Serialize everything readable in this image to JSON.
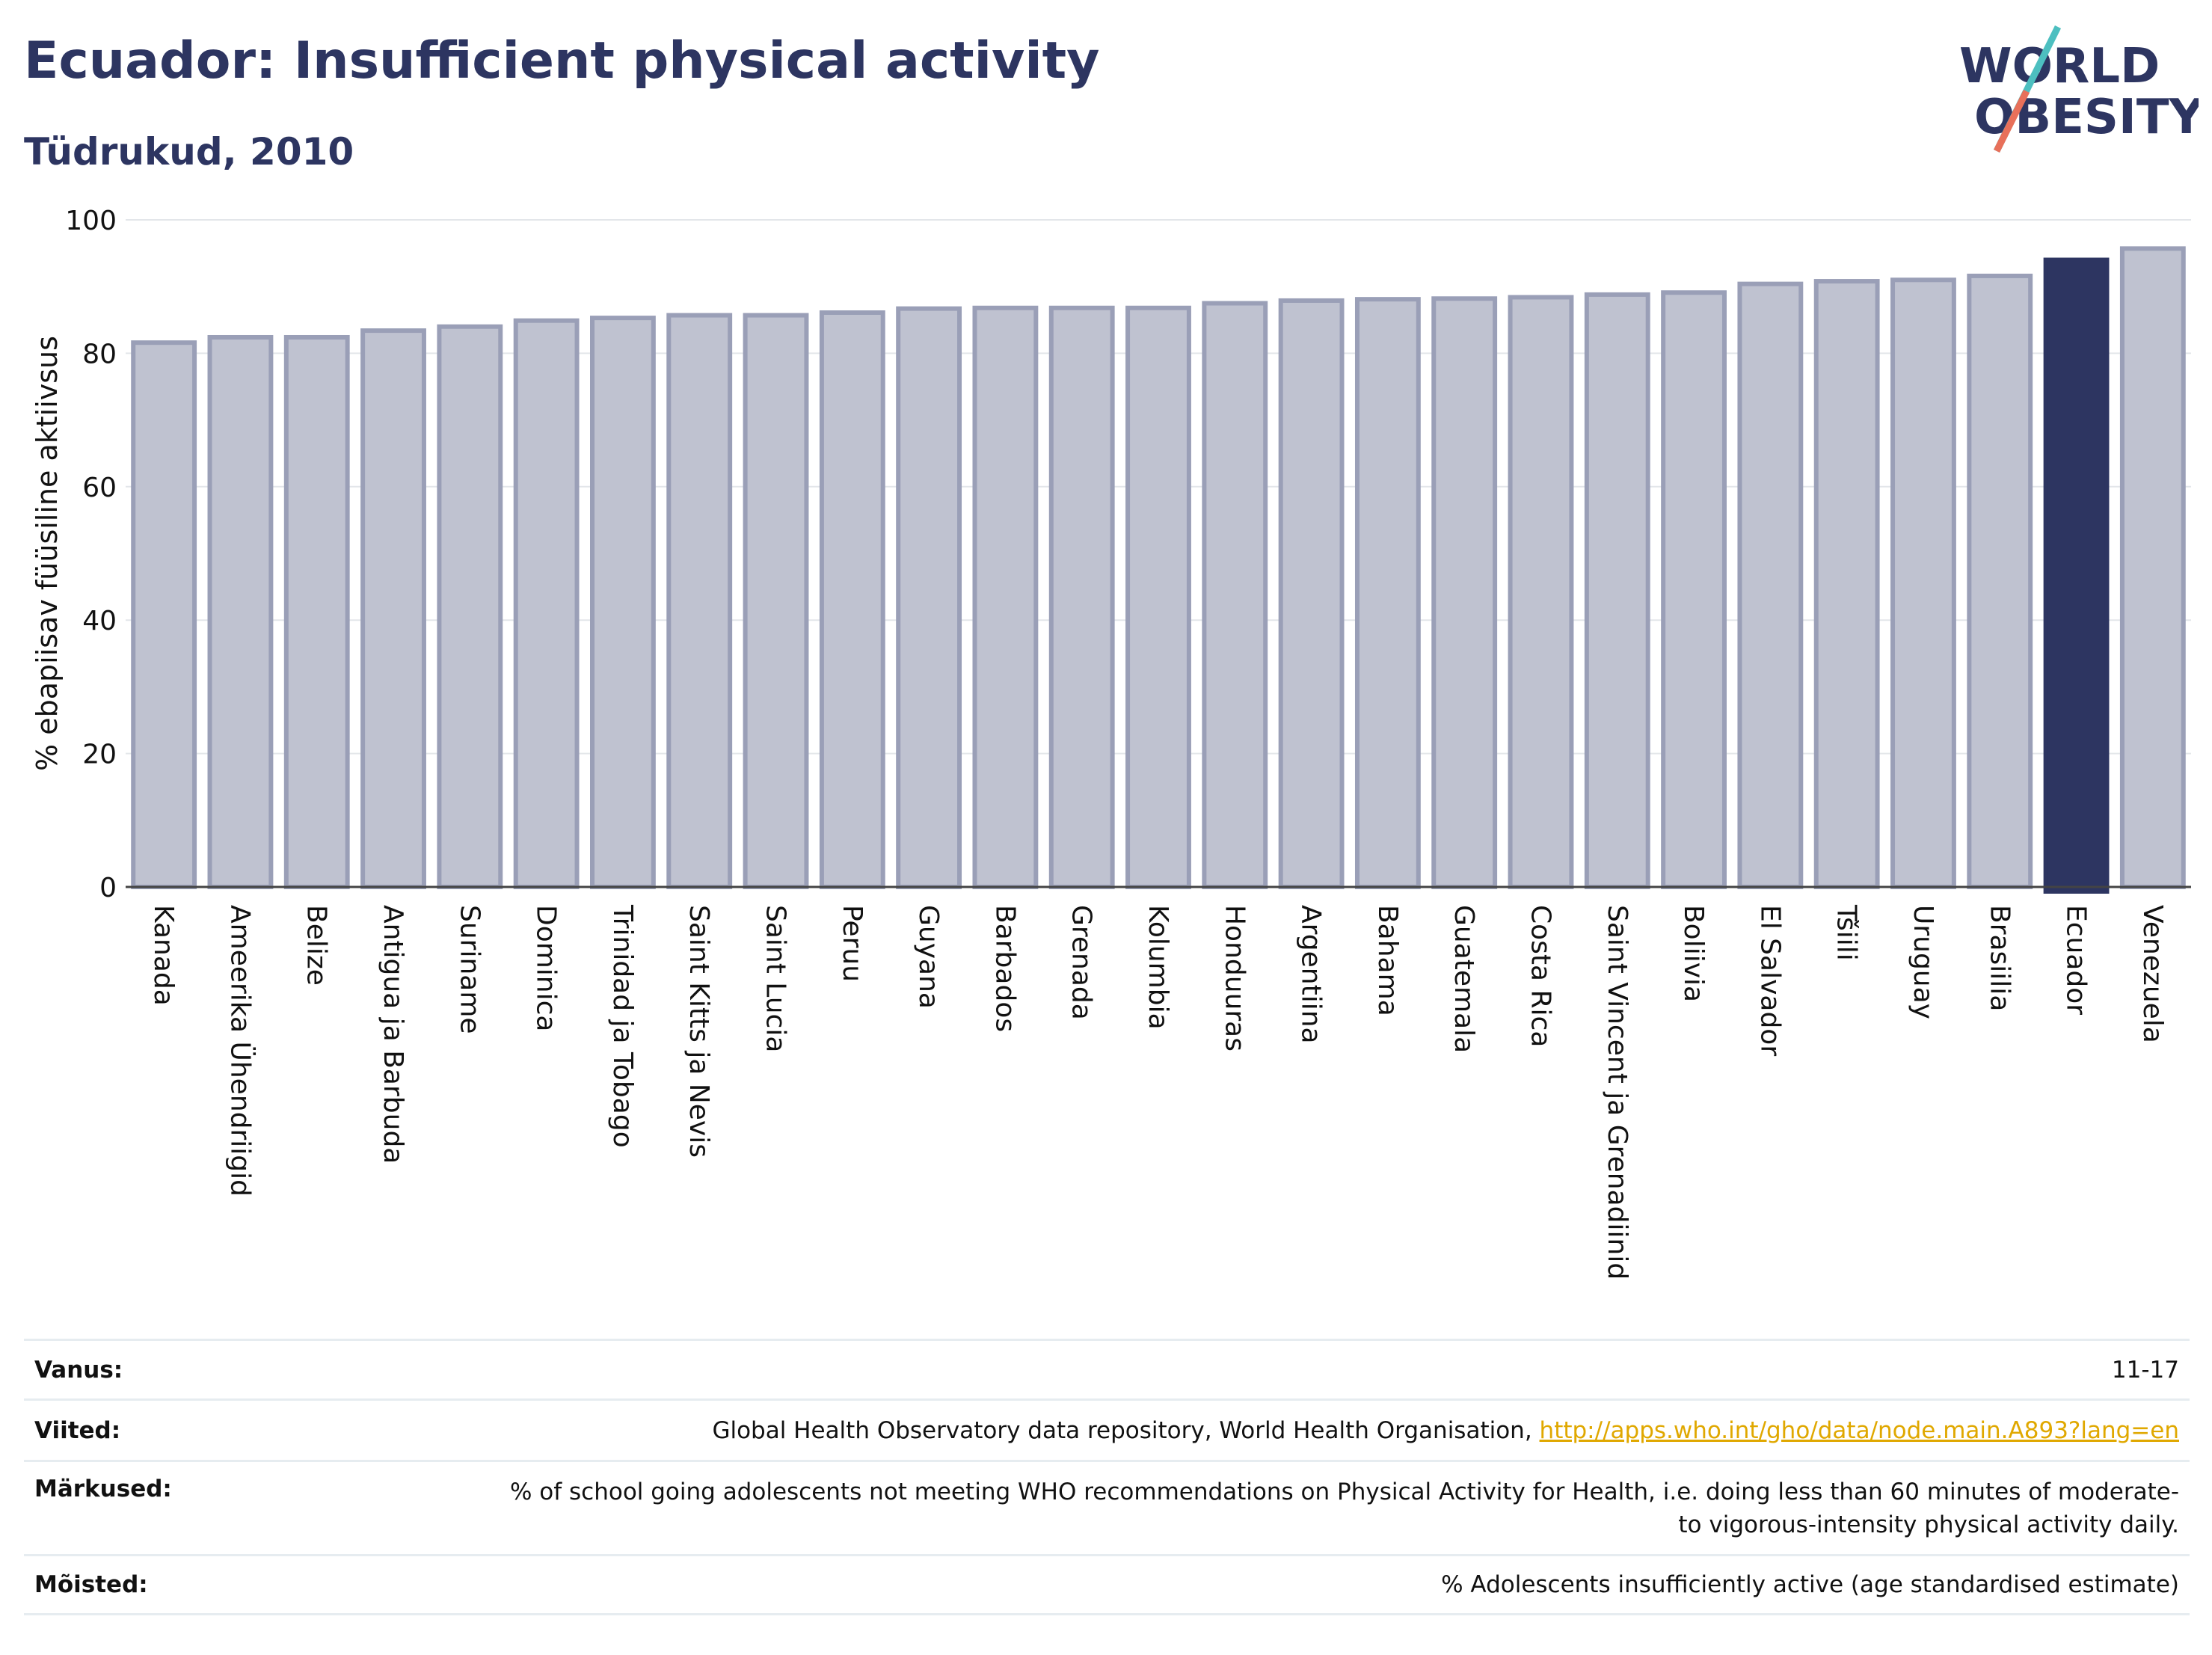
{
  "header": {
    "title": "Ecuador: Insufficient physical activity",
    "subtitle": "Tüdrukud, 2010"
  },
  "logo": {
    "line1": "WORLD",
    "line2": "OBESITY"
  },
  "colors": {
    "bar": "#bfc2d0",
    "bar_border": "#9a9fb7",
    "highlight": "#2d3561",
    "grid": "#e3e6ea",
    "title": "#2d3561",
    "link": "#e0a800"
  },
  "chart_data": {
    "type": "bar",
    "title": "Ecuador: Insufficient physical activity",
    "subtitle": "Tüdrukud, 2010",
    "xlabel": "",
    "ylabel": "% ebapiisav füüsiline aktiivsus",
    "ylim": [
      0,
      100
    ],
    "yticks": [
      0,
      20,
      40,
      60,
      80,
      100
    ],
    "grid": true,
    "highlight": "Ecuador",
    "categories": [
      "Kanada",
      "Ameerika Ühendriigid",
      "Belize",
      "Antigua ja Barbuda",
      "Suriname",
      "Dominica",
      "Trinidad ja Tobago",
      "Saint Kitts ja Nevis",
      "Saint Lucia",
      "Peruu",
      "Guyana",
      "Barbados",
      "Grenada",
      "Kolumbia",
      "Honduuras",
      "Argentiina",
      "Bahama",
      "Guatemala",
      "Costa Rica",
      "Saint Vincent ja Grenadiinid",
      "Boliivia",
      "El Salvador",
      "Tšiili",
      "Uruguay",
      "Brasiilia",
      "Ecuador",
      "Venezuela"
    ],
    "values": [
      81.6,
      82.4,
      82.4,
      83.4,
      84.0,
      84.9,
      85.3,
      85.7,
      85.7,
      86.1,
      86.7,
      86.8,
      86.8,
      86.8,
      87.5,
      87.9,
      88.1,
      88.2,
      88.4,
      88.8,
      89.1,
      90.4,
      90.8,
      91.0,
      91.6,
      94.0,
      95.7
    ]
  },
  "info": {
    "age_label": "Vanus:",
    "age_value": "11-17",
    "refs_label": "Viited:",
    "refs_text": "Global Health Observatory data repository, World Health Organisation, ",
    "refs_link": "http://apps.who.int/gho/data/node.main.A893?lang=en",
    "notes_label": "Märkused:",
    "notes_value": "% of school going adolescents not meeting WHO recommendations on Physical Activity for Health, i.e. doing less than 60 minutes of moderate- to vigorous-intensity physical activity daily.",
    "defs_label": "Mõisted:",
    "defs_value": "% Adolescents insufficiently active (age standardised estimate)"
  }
}
